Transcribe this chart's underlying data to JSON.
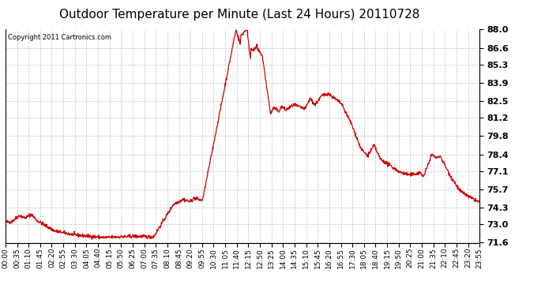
{
  "title": "Outdoor Temperature per Minute (Last 24 Hours) 20110728",
  "copyright_text": "Copyright 2011 Cartronics.com",
  "line_color": "#cc0000",
  "background_color": "#ffffff",
  "plot_bg_color": "#ffffff",
  "grid_color": "#bbbbbb",
  "ylim": [
    71.6,
    88.0
  ],
  "yticks": [
    71.6,
    73.0,
    74.3,
    75.7,
    77.1,
    78.4,
    79.8,
    81.2,
    82.5,
    83.9,
    85.3,
    86.6,
    88.0
  ],
  "xtick_labels": [
    "00:00",
    "00:35",
    "01:10",
    "01:45",
    "02:20",
    "02:55",
    "03:30",
    "04:05",
    "04:40",
    "05:15",
    "05:50",
    "06:25",
    "07:00",
    "07:35",
    "08:10",
    "08:45",
    "09:20",
    "09:55",
    "10:30",
    "11:05",
    "11:40",
    "12:15",
    "12:50",
    "13:25",
    "14:00",
    "14:35",
    "15:10",
    "15:45",
    "16:20",
    "16:55",
    "17:30",
    "18:05",
    "18:40",
    "19:15",
    "19:50",
    "20:25",
    "21:00",
    "21:35",
    "22:10",
    "22:45",
    "23:20",
    "23:55"
  ],
  "num_points": 1440,
  "title_fontsize": 11,
  "copyright_fontsize": 6,
  "tick_fontsize": 6.5,
  "ytick_fontsize": 8,
  "line_width": 0.9
}
